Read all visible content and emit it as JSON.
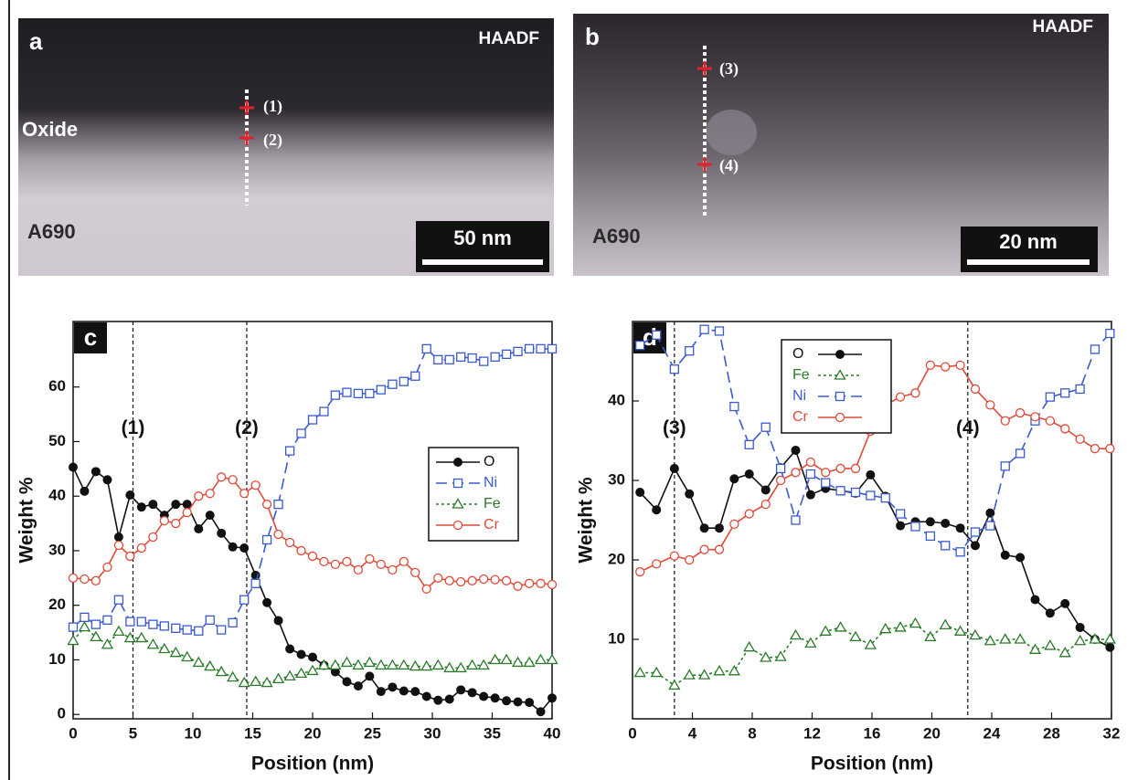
{
  "panels": [
    {
      "letter": "a",
      "detector": "HAADF",
      "region_labels": [
        "Oxide",
        "A690"
      ],
      "scale_bar": "50 nm",
      "points": [
        "(1)",
        "(2)"
      ]
    },
    {
      "letter": "b",
      "detector": "HAADF",
      "region_labels": [
        "A690"
      ],
      "scale_bar": "20 nm",
      "points": [
        "(3)",
        "(4)"
      ]
    }
  ],
  "chart_data": [
    {
      "type": "line",
      "panel": "c",
      "xlabel": "Position (nm)",
      "ylabel": "Weight %",
      "xlim": [
        0,
        40
      ],
      "ylim": [
        -0.8,
        72
      ],
      "xticks": [
        0,
        5,
        10,
        15,
        20,
        25,
        30,
        35,
        40
      ],
      "yticks": [
        0,
        10,
        20,
        30,
        40,
        50,
        60
      ],
      "grid": false,
      "legend": "right",
      "markers": [
        {
          "x": 5,
          "label": "(1)"
        },
        {
          "x": 14.5,
          "label": "(2)"
        }
      ],
      "x": [
        0,
        0.95,
        1.9,
        2.86,
        3.81,
        4.76,
        5.71,
        6.67,
        7.62,
        8.57,
        9.52,
        10.48,
        11.43,
        12.38,
        13.33,
        14.29,
        15.24,
        16.19,
        17.14,
        18.1,
        19.05,
        20,
        20.95,
        21.9,
        22.86,
        23.81,
        24.76,
        25.71,
        26.67,
        27.62,
        28.57,
        29.52,
        30.48,
        31.43,
        32.38,
        33.33,
        34.29,
        35.24,
        36.19,
        37.14,
        38.1,
        39.05,
        40
      ],
      "series": [
        {
          "name": "O",
          "color": "#111111",
          "marker": "circle-filled",
          "linestyle": "solid",
          "values": [
            45.3,
            40.9,
            44.5,
            43,
            32.5,
            40.2,
            38,
            38.5,
            36.5,
            38.5,
            38.5,
            34,
            36.5,
            33.2,
            30.7,
            30.5,
            25.5,
            20.5,
            17.2,
            12,
            11,
            10.5,
            9,
            7.8,
            6,
            5.2,
            7,
            4.2,
            5,
            4.3,
            4.2,
            3.3,
            2.6,
            2.8,
            4.5,
            4,
            3.3,
            3,
            2.5,
            2.3,
            2.2,
            0.5,
            3
          ]
        },
        {
          "name": "Ni",
          "color": "#3a5ad0",
          "marker": "square",
          "linestyle": "dashed",
          "values": [
            16,
            17.8,
            16.5,
            17.3,
            21,
            17,
            17,
            16.5,
            16.2,
            15.8,
            15.5,
            15.3,
            17.3,
            15.5,
            16.8,
            21,
            24,
            32,
            38.5,
            48.3,
            51.5,
            54,
            55.5,
            58.5,
            59,
            58.8,
            58.8,
            59.5,
            60.5,
            61,
            62,
            67,
            65,
            65,
            65.5,
            65.3,
            64.7,
            65.5,
            66,
            66.5,
            67,
            67,
            67
          ]
        },
        {
          "name": "Fe",
          "color": "#2a7a2a",
          "marker": "triangle",
          "linestyle": "dotted",
          "values": [
            13.5,
            16,
            14.2,
            12.8,
            15.2,
            14,
            14,
            12.8,
            12,
            11.3,
            10.5,
            9.5,
            8.8,
            7.8,
            6.8,
            5.8,
            6,
            5.8,
            6.5,
            7,
            7.5,
            8,
            9,
            9,
            9.5,
            9,
            9.5,
            9,
            9,
            9,
            8.8,
            8.8,
            9,
            8.5,
            8.5,
            9,
            9,
            10,
            10,
            9.5,
            9.5,
            10,
            10
          ]
        },
        {
          "name": "Cr",
          "color": "#e04a3a",
          "marker": "circle-open",
          "linestyle": "solid",
          "values": [
            25,
            24.8,
            24.5,
            27,
            31,
            29,
            30.5,
            32.5,
            35.5,
            35,
            37,
            40,
            40.5,
            43.5,
            43,
            40.5,
            42,
            38.5,
            33,
            31.5,
            30,
            29,
            28,
            27.5,
            28,
            26.5,
            28.5,
            27.5,
            26.5,
            28,
            26,
            23,
            25,
            24.5,
            24.3,
            24.5,
            24.8,
            24.7,
            24.5,
            23.5,
            24,
            24,
            23.8
          ]
        }
      ]
    },
    {
      "type": "line",
      "panel": "d",
      "xlabel": "Position (nm)",
      "ylabel": "Weight %",
      "xlim": [
        0,
        32
      ],
      "ylim": [
        0,
        50
      ],
      "xticks": [
        0,
        4,
        8,
        12,
        16,
        20,
        24,
        28,
        32
      ],
      "yticks": [
        10,
        20,
        30,
        40
      ],
      "grid": false,
      "legend": "upper left",
      "markers": [
        {
          "x": 2.8,
          "label": "(3)"
        },
        {
          "x": 22.4,
          "label": "(4)"
        }
      ],
      "x": [
        0.5,
        1.6,
        2.8,
        3.8,
        4.8,
        5.8,
        6.8,
        7.8,
        8.9,
        9.9,
        10.9,
        11.9,
        12.9,
        13.9,
        14.9,
        15.9,
        16.9,
        17.9,
        18.9,
        19.9,
        20.9,
        21.9,
        22.9,
        23.9,
        24.9,
        25.9,
        26.9,
        27.9,
        28.9,
        29.9,
        30.9,
        31.9
      ],
      "series": [
        {
          "name": "O",
          "color": "#111111",
          "marker": "circle-filled",
          "linestyle": "solid",
          "values": [
            28.5,
            26.3,
            31.5,
            28.3,
            24,
            24,
            30.2,
            30.8,
            28.8,
            31.6,
            33.8,
            28.2,
            29,
            28.7,
            28.4,
            30.7,
            28,
            24.3,
            24.8,
            24.8,
            24.6,
            24,
            21.8,
            25.9,
            20.6,
            20.3,
            15,
            13.3,
            14.5,
            11.5,
            10,
            9
          ]
        },
        {
          "name": "Fe",
          "color": "#2a7a2a",
          "marker": "triangle",
          "linestyle": "dotted",
          "values": [
            5.8,
            5.8,
            4.2,
            5.5,
            5.5,
            6,
            6,
            9,
            7.7,
            7.8,
            10.5,
            9.5,
            11,
            11.5,
            10.3,
            9.3,
            11.3,
            11.5,
            12,
            10.3,
            11.8,
            11,
            10.5,
            9.8,
            10,
            10,
            8.7,
            9.2,
            8.3,
            9.8,
            10,
            10
          ]
        },
        {
          "name": "Ni",
          "color": "#3a5ad0",
          "marker": "square",
          "linestyle": "dashed",
          "values": [
            47,
            48.3,
            44,
            46.3,
            49,
            48.8,
            39.3,
            34.5,
            36.7,
            31.5,
            25,
            30.8,
            29.7,
            28.7,
            28.5,
            28.1,
            27.8,
            25.8,
            24.2,
            23,
            21.8,
            21,
            23.5,
            24.3,
            31.8,
            33.4,
            37.5,
            40.5,
            41,
            41.5,
            46.5,
            48.5
          ]
        },
        {
          "name": "Cr",
          "color": "#e04a3a",
          "marker": "circle-open",
          "linestyle": "solid",
          "values": [
            18.5,
            19.5,
            20.5,
            20,
            21.3,
            21.3,
            24.5,
            25.8,
            27,
            30,
            31,
            32.3,
            31,
            31.5,
            31.5,
            36.2,
            39.5,
            40.5,
            41,
            44.5,
            44.3,
            44.5,
            41.5,
            39.5,
            37.5,
            38.5,
            38,
            37.5,
            36.5,
            35.2,
            34,
            34
          ]
        }
      ]
    }
  ]
}
